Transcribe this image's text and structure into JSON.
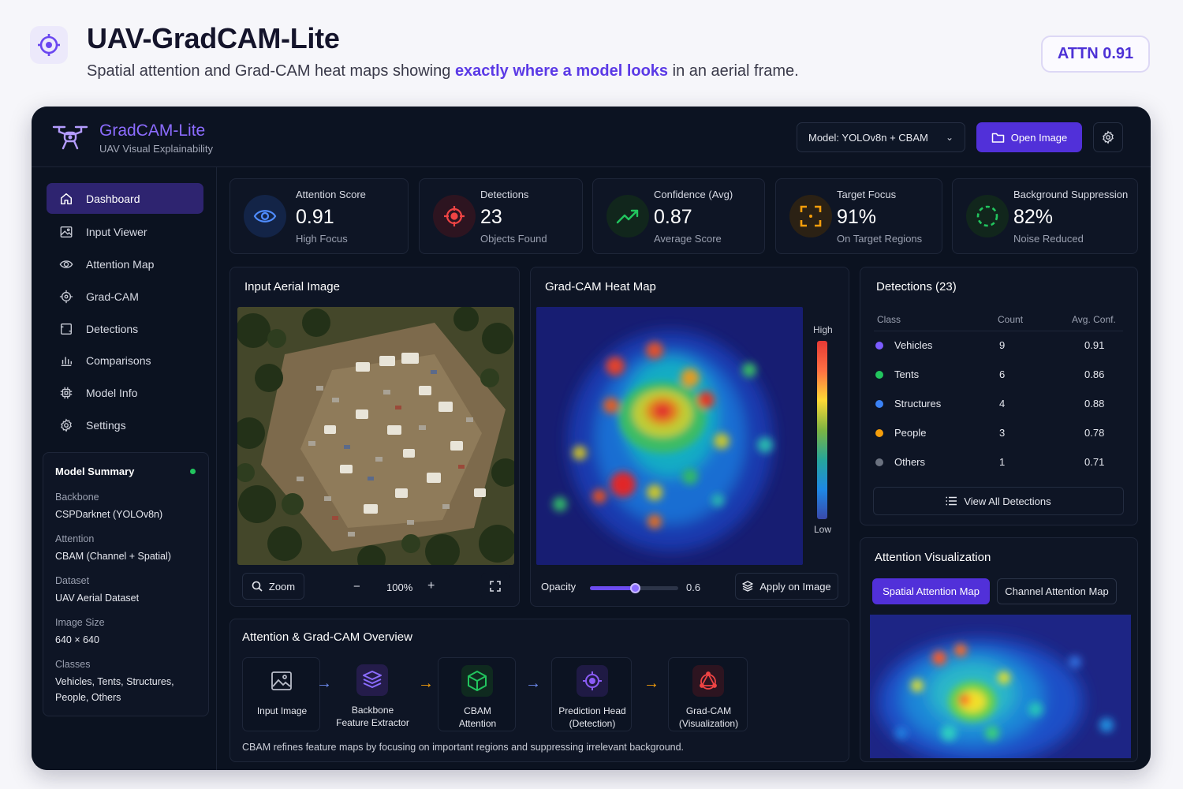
{
  "header": {
    "title": "UAV-GradCAM-Lite",
    "subtitle_pre": "Spatial attention and Grad-CAM heat maps showing ",
    "subtitle_highlight": "exactly where a model looks",
    "subtitle_post": " in an aerial frame.",
    "badge": "ATTN 0.91",
    "accent_color": "#5b3ae6"
  },
  "topbar": {
    "brand_name": "GradCAM-Lite",
    "brand_subtitle": "UAV Visual Explainability",
    "model_select": "Model: YOLOv8n + CBAM",
    "open_button": "Open Image"
  },
  "sidebar": {
    "items": [
      {
        "label": "Dashboard",
        "icon": "home-icon",
        "active": true
      },
      {
        "label": "Input Viewer",
        "icon": "image-icon"
      },
      {
        "label": "Attention Map",
        "icon": "eye-icon"
      },
      {
        "label": "Grad-CAM",
        "icon": "crosshair-icon"
      },
      {
        "label": "Detections",
        "icon": "frame-icon"
      },
      {
        "label": "Comparisons",
        "icon": "bar-chart-icon"
      },
      {
        "label": "Model Info",
        "icon": "chip-icon"
      },
      {
        "label": "Settings",
        "icon": "gear-icon"
      }
    ],
    "summary": {
      "title": "Model Summary",
      "fields": [
        {
          "label": "Backbone",
          "value": "CSPDarknet (YOLOv8n)"
        },
        {
          "label": "Attention",
          "value": "CBAM (Channel + Spatial)"
        },
        {
          "label": "Dataset",
          "value": "UAV Aerial Dataset"
        },
        {
          "label": "Image Size",
          "value": "640 × 640"
        },
        {
          "label": "Classes",
          "value": "Vehicles, Tents, Structures, People, Others"
        }
      ]
    }
  },
  "stats": [
    {
      "label": "Attention Score",
      "value": "0.91",
      "sub": "High Focus",
      "icon": "eye-icon",
      "color": "#4f8cff"
    },
    {
      "label": "Detections",
      "value": "23",
      "sub": "Objects Found",
      "icon": "target-icon",
      "color": "#ef4444"
    },
    {
      "label": "Confidence (Avg)",
      "value": "0.87",
      "sub": "Average Score",
      "icon": "trend-up-icon",
      "color": "#22c55e"
    },
    {
      "label": "Target Focus",
      "value": "91%",
      "sub": "On Target Regions",
      "icon": "focus-frame-icon",
      "color": "#f59e0b"
    },
    {
      "label": "Background Suppression",
      "value": "82%",
      "sub": "Noise Reduced",
      "icon": "dashed-circle-icon",
      "color": "#22c55e"
    }
  ],
  "input_panel": {
    "title": "Input Aerial Image",
    "zoom_label": "Zoom",
    "zoom_value": "100%",
    "minus": "−",
    "plus": "+"
  },
  "heatmap_panel": {
    "title": "Grad-CAM Heat Map",
    "scale_high": "High",
    "scale_low": "Low",
    "opacity_label": "Opacity",
    "opacity_value": "0.6",
    "opacity_fraction": 0.6,
    "apply_button": "Apply on Image"
  },
  "detections_panel": {
    "title": "Detections (23)",
    "columns": [
      "Class",
      "Count",
      "Avg. Conf."
    ],
    "rows": [
      {
        "class": "Vehicles",
        "count": "9",
        "conf": "0.91",
        "color": "#7c5cff"
      },
      {
        "class": "Tents",
        "count": "6",
        "conf": "0.86",
        "color": "#22c55e"
      },
      {
        "class": "Structures",
        "count": "4",
        "conf": "0.88",
        "color": "#3b82f6"
      },
      {
        "class": "People",
        "count": "3",
        "conf": "0.78",
        "color": "#f59e0b"
      },
      {
        "class": "Others",
        "count": "1",
        "conf": "0.71",
        "color": "#6b7280"
      }
    ],
    "view_all": "View All Detections"
  },
  "attention_viz": {
    "title": "Attention Visualization",
    "tab_spatial": "Spatial Attention Map",
    "tab_channel": "Channel Attention Map"
  },
  "overview": {
    "title": "Attention & Grad-CAM Overview",
    "steps": [
      {
        "line1": "Input Image",
        "line2": "",
        "icon": "image-icon",
        "color": "#9aa0b0"
      },
      {
        "line1": "Backbone",
        "line2": "Feature Extractor",
        "icon": "layers-icon",
        "color": "#7c5cff"
      },
      {
        "line1": "CBAM",
        "line2": "Attention",
        "icon": "cube-icon",
        "color": "#22c55e"
      },
      {
        "line1": "Prediction Head",
        "line2": "(Detection)",
        "icon": "crosshair-icon",
        "color": "#8b5cf6"
      },
      {
        "line1": "Grad-CAM",
        "line2": "(Visualization)",
        "icon": "gradcam-icon",
        "color": "#ef4444"
      }
    ],
    "caption": "CBAM refines feature maps by focusing on important regions and suppressing irrelevant background."
  }
}
